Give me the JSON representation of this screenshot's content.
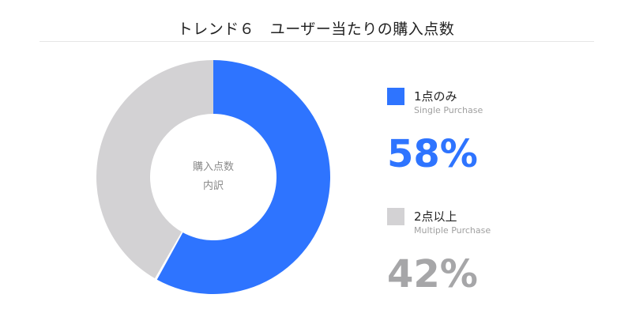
{
  "chart_data": {
    "type": "pie",
    "variant": "donut",
    "title": "トレンド６　ユーザー当たりの購入点数",
    "center_label": [
      "購入点数",
      "内訳"
    ],
    "categories": [
      "1点のみ",
      "2点以上"
    ],
    "subtitles": [
      "Single Purchase",
      "Multiple Purchase"
    ],
    "values": [
      58,
      42
    ],
    "value_labels": [
      "58%",
      "42%"
    ],
    "colors": [
      "#2e74ff",
      "#d3d2d4"
    ],
    "percent_colors": [
      "#2e74ff",
      "#a6a6a8"
    ],
    "legend_position": "right"
  }
}
